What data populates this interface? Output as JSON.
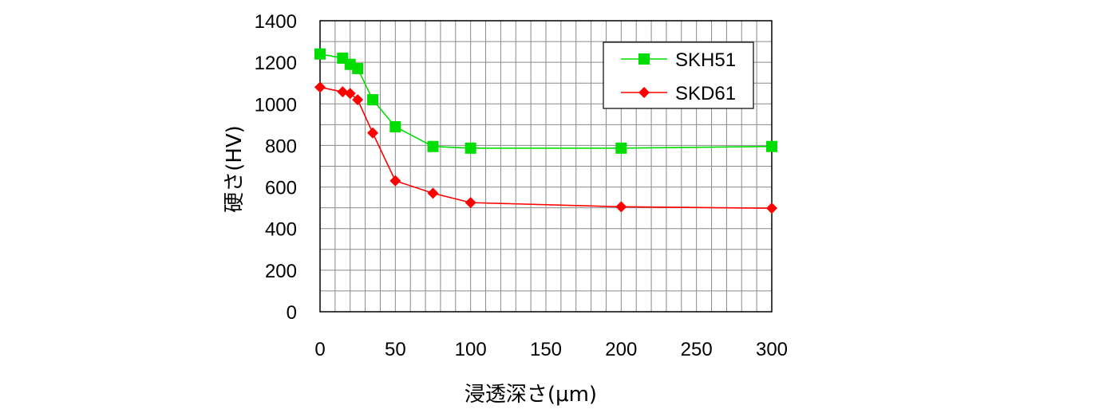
{
  "chart_data": {
    "type": "line",
    "xlabel": "浸透深さ(μm)",
    "ylabel": "硬さ(HV)",
    "xlim": [
      0,
      300
    ],
    "ylim": [
      0,
      1400
    ],
    "x_ticks": [
      "0",
      "50",
      "100",
      "150",
      "200",
      "250",
      "300"
    ],
    "y_ticks": [
      "0",
      "200",
      "400",
      "600",
      "800",
      "1000",
      "1200",
      "1400"
    ],
    "grid": true,
    "legend_position": "top-right",
    "series": [
      {
        "name": "SKH51",
        "color": "#00dd00",
        "marker": "square",
        "points": [
          [
            0,
            1240
          ],
          [
            15,
            1220
          ],
          [
            20,
            1190
          ],
          [
            25,
            1170
          ],
          [
            35,
            1020
          ],
          [
            50,
            890
          ],
          [
            75,
            795
          ],
          [
            100,
            787
          ],
          [
            200,
            787
          ],
          [
            300,
            795
          ]
        ]
      },
      {
        "name": "SKD61",
        "color": "#ff0000",
        "marker": "diamond",
        "points": [
          [
            0,
            1080
          ],
          [
            15,
            1058
          ],
          [
            20,
            1050
          ],
          [
            25,
            1020
          ],
          [
            35,
            860
          ],
          [
            50,
            630
          ],
          [
            75,
            570
          ],
          [
            100,
            525
          ],
          [
            200,
            505
          ],
          [
            300,
            498
          ]
        ]
      }
    ]
  }
}
